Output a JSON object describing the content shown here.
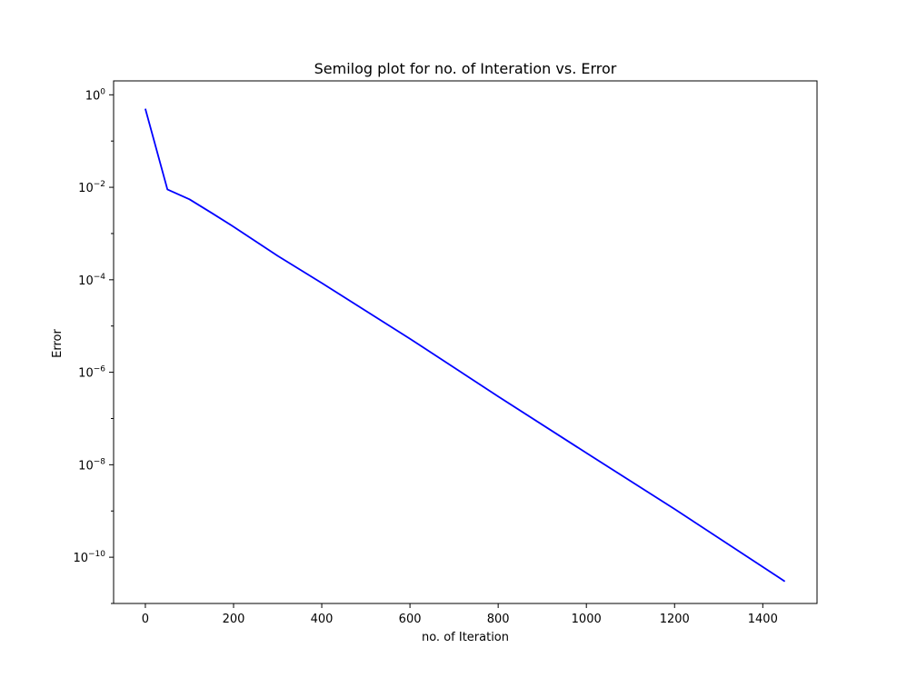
{
  "chart_data": {
    "type": "line",
    "title": "Semilog plot for no. of Interation vs. Error",
    "xlabel": "no. of Iteration",
    "ylabel": "Error",
    "yscale": "log",
    "xlim": [
      -72,
      1523
    ],
    "ylim": [
      1e-11,
      2
    ],
    "xticks": [
      0,
      200,
      400,
      600,
      800,
      1000,
      1200,
      1400
    ],
    "xtick_labels": [
      "0",
      "200",
      "400",
      "600",
      "800",
      "1000",
      "1200",
      "1400"
    ],
    "yticks": [
      1.0,
      0.01,
      0.0001,
      1e-06,
      1e-08,
      1e-10
    ],
    "ytick_labels": [
      {
        "base": "10",
        "exp": "0"
      },
      {
        "base": "10",
        "exp": "−2"
      },
      {
        "base": "10",
        "exp": "−4"
      },
      {
        "base": "10",
        "exp": "−6"
      },
      {
        "base": "10",
        "exp": "−8"
      },
      {
        "base": "10",
        "exp": "−10"
      }
    ],
    "grid": false,
    "series": [
      {
        "color": "#0000ff",
        "x": [
          0,
          50,
          100,
          150,
          200,
          300,
          400,
          600,
          800,
          1000,
          1200,
          1450
        ],
        "y": [
          0.5,
          0.009,
          0.0055,
          0.0028,
          0.0014,
          0.00033,
          8.5e-05,
          5.3e-06,
          3e-07,
          1.8e-08,
          1.1e-09,
          3e-11
        ]
      }
    ]
  }
}
